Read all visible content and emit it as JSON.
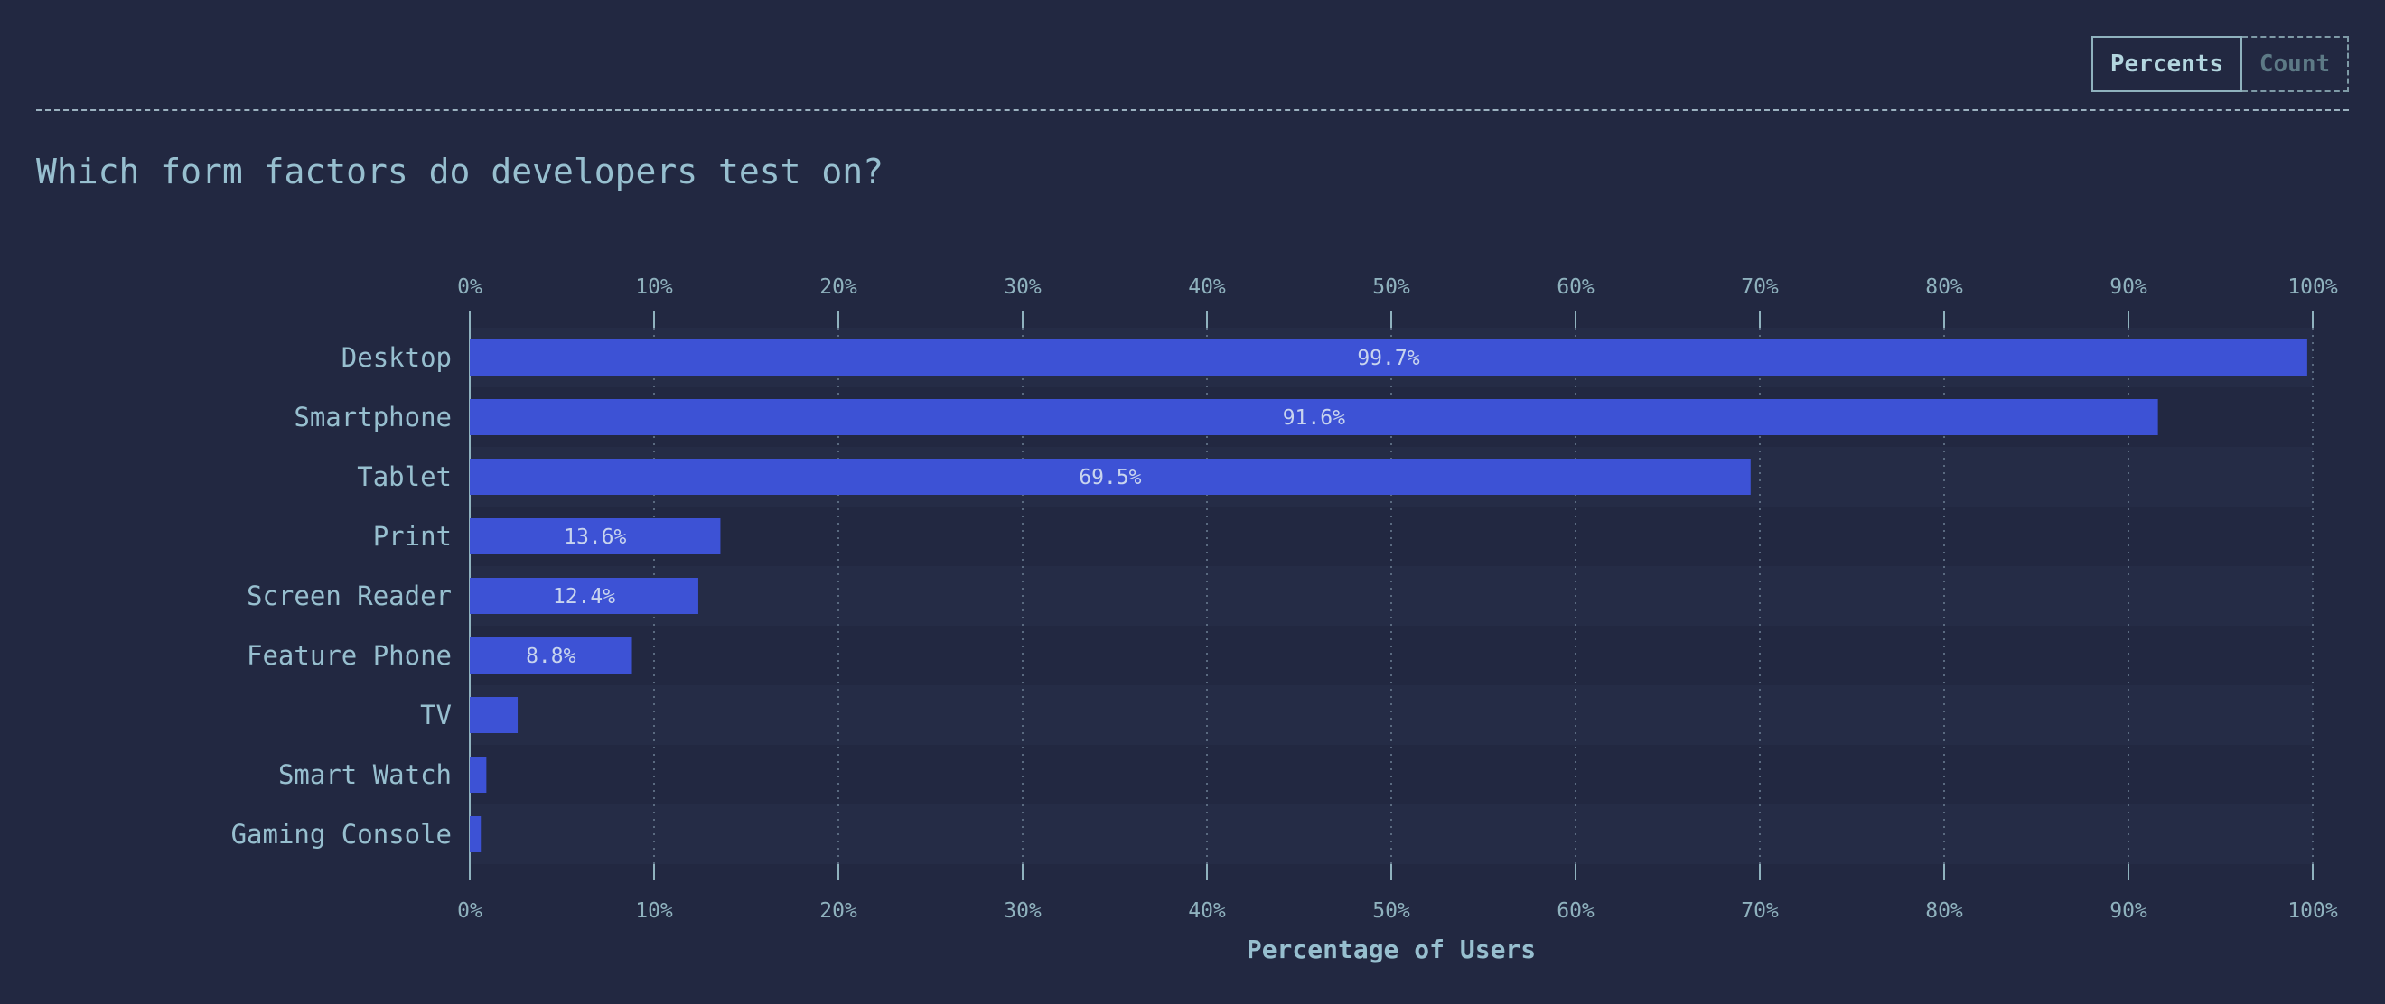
{
  "toggle": {
    "percents_label": "Percents",
    "count_label": "Count"
  },
  "chart_data": {
    "type": "bar",
    "orientation": "horizontal",
    "title": "Which form factors do developers test on?",
    "xlabel": "Percentage of Users",
    "ylabel": "",
    "xlim": [
      0,
      100
    ],
    "x_ticks": [
      "0%",
      "10%",
      "20%",
      "30%",
      "40%",
      "50%",
      "60%",
      "70%",
      "80%",
      "90%",
      "100%"
    ],
    "categories": [
      "Desktop",
      "Smartphone",
      "Tablet",
      "Print",
      "Screen Reader",
      "Feature Phone",
      "TV",
      "Smart Watch",
      "Gaming Console"
    ],
    "values": [
      99.7,
      91.6,
      69.5,
      13.6,
      12.4,
      8.8,
      2.6,
      0.9,
      0.6
    ],
    "data_labels": [
      "99.7%",
      "91.6%",
      "69.5%",
      "13.6%",
      "12.4%",
      "8.8%",
      "",
      "",
      ""
    ],
    "grid": true,
    "bar_color": "#3d52d5"
  }
}
